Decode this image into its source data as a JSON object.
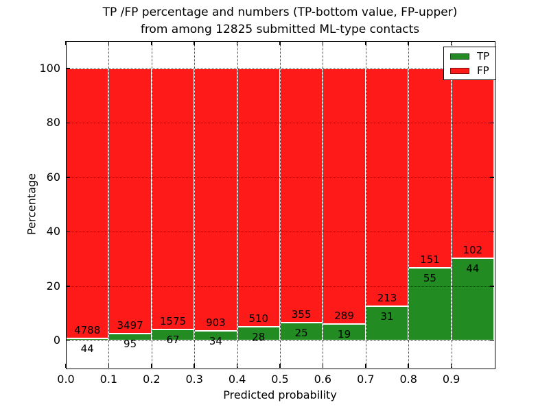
{
  "figure": {
    "title_line1": "TP /FP percentage and numbers (TP-bottom value, FP-upper)",
    "title_line2": "from among 12825 submitted ML-type contacts",
    "xlabel": "Predicted probability",
    "ylabel": "Percentage"
  },
  "chart_data": {
    "type": "bar",
    "stacked": true,
    "normalized": "percent-of-bin",
    "title": "TP /FP percentage and numbers (TP-bottom value, FP-upper) from among 12825 submitted ML-type contacts",
    "xlabel": "Predicted probability",
    "ylabel": "Percentage",
    "total_contacts": 12825,
    "bin_edges": [
      0.0,
      0.1,
      0.2,
      0.3,
      0.4,
      0.5,
      0.6,
      0.7,
      0.8,
      0.9,
      1.0
    ],
    "series": [
      {
        "name": "TP",
        "color": "#228b22",
        "counts": [
          44,
          95,
          67,
          34,
          28,
          25,
          19,
          31,
          55,
          44
        ]
      },
      {
        "name": "FP",
        "color": "#ff1a1a",
        "counts": [
          4788,
          3497,
          1575,
          903,
          510,
          355,
          289,
          213,
          151,
          102
        ]
      }
    ],
    "tp_percent_per_bin": [
      0.91,
      2.64,
      4.08,
      3.63,
      5.2,
      6.58,
      6.17,
      12.7,
      26.7,
      30.14
    ],
    "xticks": [
      0,
      0.1,
      0.2,
      0.3,
      0.4,
      0.5,
      0.6,
      0.7,
      0.8,
      0.9
    ],
    "xtick_labels": [
      "0.0",
      "0.1",
      "0.2",
      "0.3",
      "0.4",
      "0.5",
      "0.6",
      "0.7",
      "0.8",
      "0.9"
    ],
    "yticks": [
      0,
      20,
      40,
      60,
      80,
      100
    ],
    "ylim": [
      -10,
      110
    ],
    "xlim": [
      0.0,
      1.0
    ],
    "grid": "dotted",
    "legend": {
      "position": "upper right",
      "entries": [
        "TP",
        "FP"
      ]
    },
    "colors": {
      "tp": "#228b22",
      "fp": "#ff1a1a",
      "grid": "#000000",
      "text": "#000000",
      "background": "#ffffff"
    }
  }
}
